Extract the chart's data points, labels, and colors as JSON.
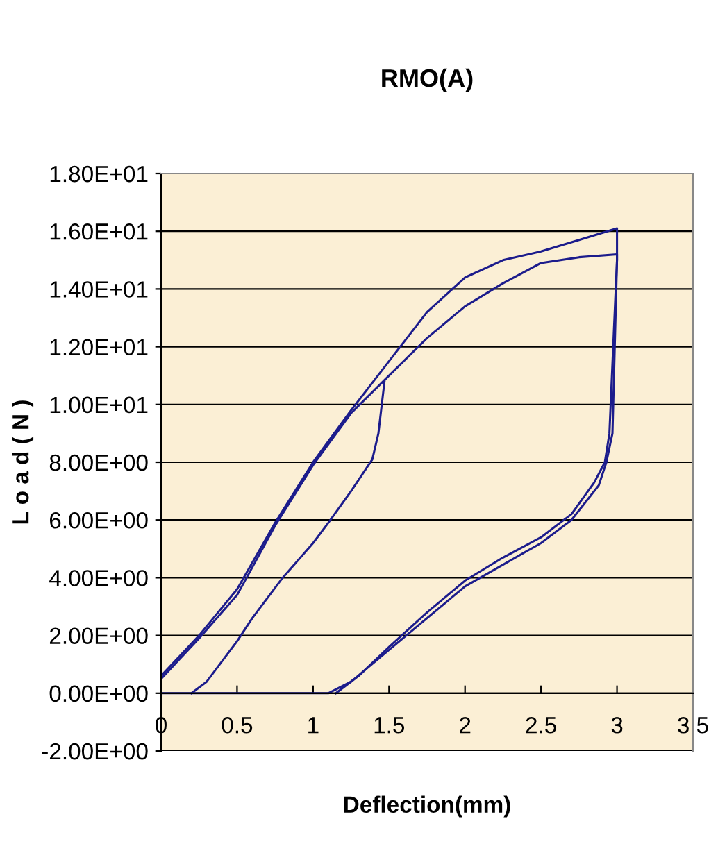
{
  "chart_data": {
    "type": "line",
    "title": "RMO(A)",
    "xlabel": "Deflection(mm)",
    "ylabel": "L o a d ( N )",
    "xlim": [
      0,
      3.5
    ],
    "xticks": [
      0,
      0.5,
      1,
      1.5,
      2,
      2.5,
      3,
      3.5
    ],
    "ylim": [
      -2,
      18
    ],
    "yticks": [
      {
        "value": -2,
        "label": "-2.00E+00"
      },
      {
        "value": 0,
        "label": "0.00E+00"
      },
      {
        "value": 2,
        "label": "2.00E+00"
      },
      {
        "value": 4,
        "label": "4.00E+00"
      },
      {
        "value": 6,
        "label": "6.00E+00"
      },
      {
        "value": 8,
        "label": "8.00E+00"
      },
      {
        "value": 10,
        "label": "1.00E+01"
      },
      {
        "value": 12,
        "label": "1.20E+01"
      },
      {
        "value": 14,
        "label": "1.40E+01"
      },
      {
        "value": 16,
        "label": "1.60E+01"
      },
      {
        "value": 18,
        "label": "1.80E+01"
      }
    ],
    "grid": "y",
    "marker": "none",
    "line_style": "solid",
    "series": [
      {
        "color": "#1c1c8c",
        "x": [
          0.2,
          0.3,
          0.5,
          0.6,
          0.8,
          1.0,
          1.1,
          1.25,
          1.39,
          1.43,
          1.47
        ],
        "values": [
          0,
          0.4,
          1.8,
          2.6,
          4.0,
          5.2,
          5.9,
          7.0,
          8.1,
          9.0,
          10.8
        ]
      },
      {
        "color": "#1c1c8c",
        "x": [
          0,
          0.25,
          0.5,
          0.75,
          1.0,
          1.25,
          1.5,
          1.75,
          2.0,
          2.25,
          2.5,
          2.75,
          3.0,
          3.0,
          2.95,
          2.92,
          2.85,
          2.7,
          2.5,
          2.25,
          2.0,
          1.75,
          1.5,
          1.3,
          1.15
        ],
        "values": [
          0.6,
          2.0,
          3.6,
          5.9,
          8.0,
          9.8,
          11.5,
          13.2,
          14.4,
          15.0,
          15.3,
          15.7,
          16.1,
          15.0,
          9,
          8,
          7.3,
          6.2,
          5.4,
          4.7,
          3.9,
          2.8,
          1.6,
          0.6,
          0
        ]
      },
      {
        "color": "#1c1c8c",
        "x": [
          0,
          0.25,
          0.5,
          0.75,
          1.0,
          1.25,
          1.5,
          1.75,
          2.0,
          2.25,
          2.5,
          2.75,
          3.0,
          3.0,
          2.97,
          2.93,
          2.88,
          2.7,
          2.5,
          2.0,
          1.5,
          1.25,
          1.1,
          0
        ],
        "values": [
          0.5,
          1.9,
          3.4,
          5.8,
          7.9,
          9.7,
          11.0,
          12.3,
          13.4,
          14.2,
          14.9,
          15.1,
          15.2,
          15.0,
          9,
          8,
          7.2,
          6.0,
          5.2,
          3.7,
          1.5,
          0.4,
          0,
          0
        ]
      }
    ]
  }
}
